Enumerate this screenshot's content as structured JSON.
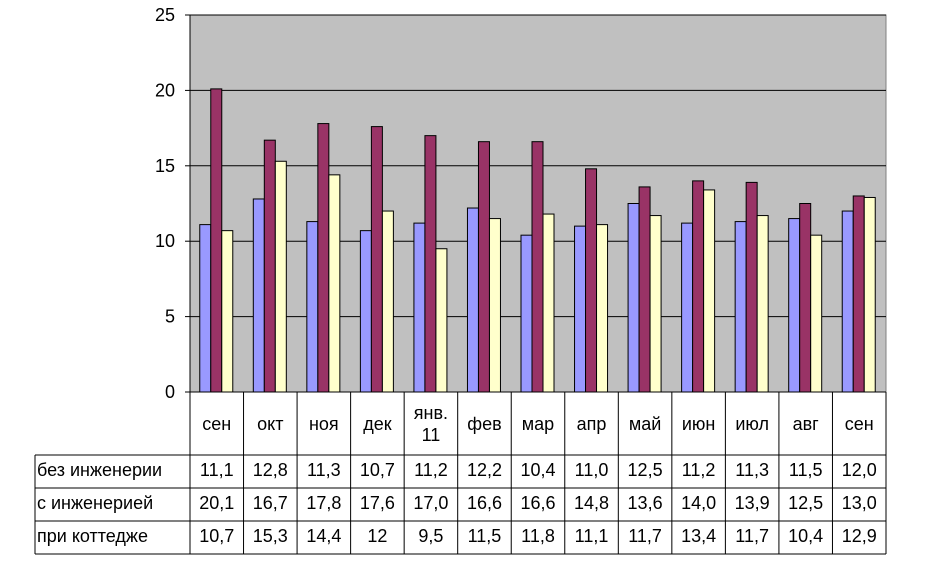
{
  "chart_data": {
    "type": "bar",
    "categories": [
      "сен",
      "окт",
      "ноя",
      "дек",
      "янв. 11",
      "фев",
      "мар",
      "апр",
      "май",
      "июн",
      "июл",
      "авг",
      "сен"
    ],
    "category_lines": [
      [
        "сен"
      ],
      [
        "окт"
      ],
      [
        "ноя"
      ],
      [
        "дек"
      ],
      [
        "янв.",
        "11"
      ],
      [
        "фев"
      ],
      [
        "мар"
      ],
      [
        "апр"
      ],
      [
        "май"
      ],
      [
        "июн"
      ],
      [
        "июл"
      ],
      [
        "авг"
      ],
      [
        "сен"
      ]
    ],
    "series": [
      {
        "name": "без инженерии",
        "values": [
          11.1,
          12.8,
          11.3,
          10.7,
          11.2,
          12.2,
          10.4,
          11.0,
          12.5,
          11.2,
          11.3,
          11.5,
          12.0
        ],
        "labels": [
          "11,1",
          "12,8",
          "11,3",
          "10,7",
          "11,2",
          "12,2",
          "10,4",
          "11,0",
          "12,5",
          "11,2",
          "11,3",
          "11,5",
          "12,0"
        ],
        "color": "#9999FF"
      },
      {
        "name": "с инженерией",
        "values": [
          20.1,
          16.7,
          17.8,
          17.6,
          17.0,
          16.6,
          16.6,
          14.8,
          13.6,
          14.0,
          13.9,
          12.5,
          13.0
        ],
        "labels": [
          "20,1",
          "16,7",
          "17,8",
          "17,6",
          "17,0",
          "16,6",
          "16,6",
          "14,8",
          "13,6",
          "14,0",
          "13,9",
          "12,5",
          "13,0"
        ],
        "color": "#993366"
      },
      {
        "name": "при коттедже",
        "values": [
          10.7,
          15.3,
          14.4,
          12,
          9.5,
          11.5,
          11.8,
          11.1,
          11.7,
          13.4,
          11.7,
          10.4,
          12.9
        ],
        "labels": [
          "10,7",
          "15,3",
          "14,4",
          "12",
          "9,5",
          "11,5",
          "11,8",
          "11,1",
          "11,7",
          "13,4",
          "11,7",
          "10,4",
          "12,9"
        ],
        "color": "#FFFFCC"
      }
    ],
    "ylim": [
      0,
      25
    ],
    "yticks": [
      0,
      5,
      10,
      15,
      20,
      25
    ],
    "grid": true,
    "plot_background": "#C0C0C0",
    "legend": "data table below chart"
  }
}
